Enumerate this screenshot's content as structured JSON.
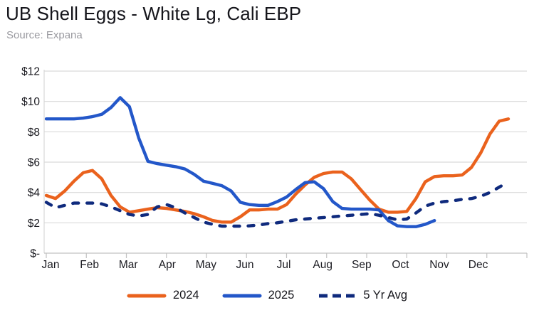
{
  "chart_data": {
    "type": "line",
    "title": "UB Shell Eggs - White Lg, Cali EBP",
    "source": "Source: Expana",
    "currency_unit": "USD per dozen",
    "ylim": [
      0,
      12
    ],
    "yticks": [
      {
        "value": 12,
        "label": "$12"
      },
      {
        "value": 10,
        "label": "$10"
      },
      {
        "value": 8,
        "label": "$8"
      },
      {
        "value": 6,
        "label": "$6"
      },
      {
        "value": 4,
        "label": "$4"
      },
      {
        "value": 2,
        "label": "$2"
      },
      {
        "value": 0,
        "label": "$-"
      }
    ],
    "months": [
      "Jan",
      "Feb",
      "Mar",
      "Apr",
      "May",
      "Jun",
      "Jul",
      "Aug",
      "Sep",
      "Oct",
      "Nov",
      "Dec"
    ],
    "grid": "horizontal-only",
    "legend_position": "bottom",
    "x_resolution": "weekly",
    "weeks_per_year": 52,
    "series": [
      {
        "name": "2024",
        "color": "#ea621d",
        "style": "solid",
        "start_week": 0,
        "weekly_values": [
          3.8,
          3.6,
          4.1,
          4.75,
          5.3,
          5.45,
          4.9,
          3.8,
          3.05,
          2.7,
          2.8,
          2.9,
          3.0,
          2.95,
          2.85,
          2.75,
          2.6,
          2.4,
          2.15,
          2.05,
          2.05,
          2.4,
          2.85,
          2.85,
          2.9,
          2.9,
          3.2,
          3.9,
          4.5,
          5.0,
          5.25,
          5.35,
          5.35,
          4.9,
          4.2,
          3.5,
          2.9,
          2.7,
          2.7,
          2.75,
          3.6,
          4.7,
          5.05,
          5.1,
          5.1,
          5.15,
          5.65,
          6.6,
          7.85,
          8.7,
          8.85
        ]
      },
      {
        "name": "2025",
        "color": "#2357c9",
        "style": "solid",
        "start_week": 0,
        "weekly_values": [
          8.85,
          8.85,
          8.85,
          8.85,
          8.9,
          9.0,
          9.15,
          9.6,
          10.25,
          9.65,
          7.6,
          6.05,
          5.9,
          5.8,
          5.7,
          5.55,
          5.2,
          4.75,
          4.6,
          4.45,
          4.1,
          3.35,
          3.2,
          3.15,
          3.15,
          3.4,
          3.7,
          4.2,
          4.65,
          4.7,
          4.25,
          3.4,
          2.95,
          2.9,
          2.9,
          2.9,
          2.85,
          2.15,
          1.8,
          1.75,
          1.75,
          1.9,
          2.15
        ]
      },
      {
        "name": "5 Yr Avg",
        "color": "#0f2a7d",
        "style": "dashed",
        "start_week": 0,
        "weekly_values": [
          3.35,
          3.0,
          3.15,
          3.3,
          3.3,
          3.3,
          3.25,
          3.05,
          2.8,
          2.55,
          2.45,
          2.55,
          3.05,
          3.2,
          3.0,
          2.65,
          2.35,
          2.05,
          1.9,
          1.78,
          1.78,
          1.78,
          1.8,
          1.85,
          1.95,
          2.0,
          2.1,
          2.2,
          2.25,
          2.3,
          2.35,
          2.4,
          2.45,
          2.5,
          2.55,
          2.6,
          2.5,
          2.35,
          2.2,
          2.25,
          2.65,
          3.1,
          3.3,
          3.4,
          3.45,
          3.55,
          3.6,
          3.75,
          4.0,
          4.35,
          4.7
        ]
      }
    ]
  }
}
